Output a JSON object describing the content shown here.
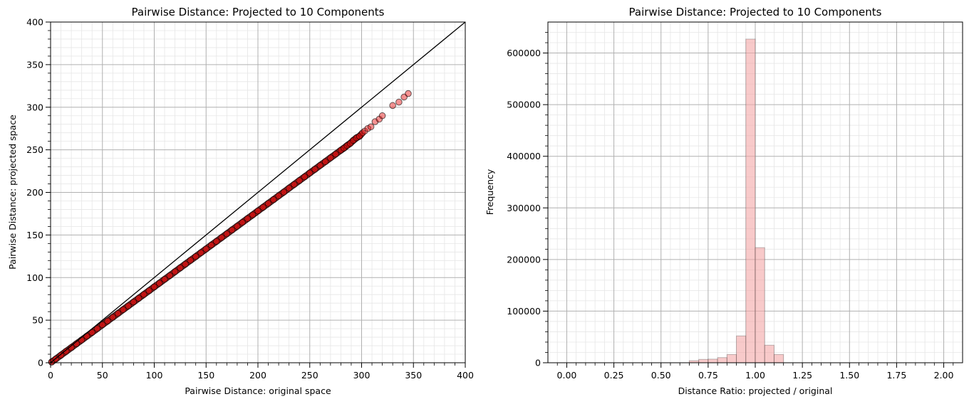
{
  "chart_data": [
    {
      "type": "scatter",
      "title": "Pairwise Distance: Projected to 10 Components",
      "xlabel": "Pairwise Distance: original space",
      "ylabel": "Pairwise Distance: projected space",
      "xlim": [
        0,
        400
      ],
      "ylim": [
        0,
        400
      ],
      "x_ticks": [
        "0",
        "50",
        "100",
        "150",
        "200",
        "250",
        "300",
        "350",
        "400"
      ],
      "y_ticks": [
        "0",
        "50",
        "100",
        "150",
        "200",
        "250",
        "300",
        "350",
        "400"
      ],
      "grid": true,
      "minor_grid": true,
      "reference_line": {
        "x": [
          0,
          400
        ],
        "y": [
          0,
          400
        ]
      },
      "point_color": "#e81010",
      "line_color": "#000000",
      "points": [
        [
          1,
          0.9
        ],
        [
          5,
          4.4
        ],
        [
          10,
          8.9
        ],
        [
          15,
          13.4
        ],
        [
          20,
          17.8
        ],
        [
          25,
          22.3
        ],
        [
          30,
          26.7
        ],
        [
          35,
          31.2
        ],
        [
          40,
          35.6
        ],
        [
          45,
          40.1
        ],
        [
          50,
          44.6
        ],
        [
          55,
          49
        ],
        [
          60,
          53.5
        ],
        [
          65,
          57.9
        ],
        [
          70,
          62.4
        ],
        [
          75,
          66.8
        ],
        [
          80,
          71.3
        ],
        [
          85,
          75.7
        ],
        [
          90,
          80.2
        ],
        [
          95,
          84.6
        ],
        [
          100,
          89.1
        ],
        [
          105,
          93.5
        ],
        [
          110,
          98
        ],
        [
          115,
          102.4
        ],
        [
          120,
          106.9
        ],
        [
          125,
          111.4
        ],
        [
          130,
          115.8
        ],
        [
          135,
          120.3
        ],
        [
          140,
          124.7
        ],
        [
          145,
          129.2
        ],
        [
          150,
          133.6
        ],
        [
          155,
          138.1
        ],
        [
          160,
          142.5
        ],
        [
          165,
          147
        ],
        [
          170,
          151.4
        ],
        [
          175,
          155.9
        ],
        [
          180,
          160.3
        ],
        [
          185,
          164.8
        ],
        [
          190,
          169.3
        ],
        [
          195,
          173.7
        ],
        [
          200,
          178.2
        ],
        [
          205,
          182.6
        ],
        [
          210,
          187.1
        ],
        [
          215,
          191.5
        ],
        [
          220,
          196
        ],
        [
          225,
          200.4
        ],
        [
          230,
          205
        ],
        [
          235,
          209.4
        ],
        [
          240,
          213.9
        ],
        [
          245,
          218.3
        ],
        [
          250,
          222.8
        ],
        [
          255,
          227.2
        ],
        [
          260,
          231.7
        ],
        [
          265,
          236.1
        ],
        [
          270,
          240.6
        ],
        [
          275,
          245
        ],
        [
          280,
          249.5
        ],
        [
          283,
          252
        ],
        [
          286,
          255
        ],
        [
          289,
          257.5
        ],
        [
          292,
          261
        ],
        [
          295,
          264
        ],
        [
          298,
          266
        ],
        [
          301,
          270
        ],
        [
          303,
          272
        ],
        [
          306,
          275
        ],
        [
          309,
          277
        ],
        [
          313,
          283
        ],
        [
          317,
          286
        ],
        [
          320,
          290
        ],
        [
          330,
          302
        ],
        [
          336,
          306
        ],
        [
          341,
          312
        ],
        [
          345,
          316
        ]
      ]
    },
    {
      "type": "bar",
      "title": "Pairwise Distance: Projected to 10 Components",
      "xlabel": "Distance Ratio: projected / original",
      "ylabel": "Frequency",
      "xlim": [
        -0.1,
        2.1
      ],
      "ylim": [
        0,
        660000
      ],
      "x_ticks": [
        "0.00",
        "0.25",
        "0.50",
        "0.75",
        "1.00",
        "1.25",
        "1.50",
        "1.75",
        "2.00"
      ],
      "y_ticks": [
        "0",
        "100000",
        "200000",
        "300000",
        "400000",
        "500000",
        "600000"
      ],
      "grid": true,
      "minor_grid": true,
      "bar_color": "#f4a6a6",
      "bin_width": 0.05,
      "bins": [
        {
          "start": 0.65,
          "value": 4000
        },
        {
          "start": 0.7,
          "value": 6500
        },
        {
          "start": 0.75,
          "value": 7000
        },
        {
          "start": 0.8,
          "value": 10000
        },
        {
          "start": 0.85,
          "value": 16000
        },
        {
          "start": 0.9,
          "value": 52000
        },
        {
          "start": 0.95,
          "value": 627000
        },
        {
          "start": 1.0,
          "value": 223000
        },
        {
          "start": 1.05,
          "value": 34000
        },
        {
          "start": 1.1,
          "value": 16000
        }
      ]
    }
  ]
}
